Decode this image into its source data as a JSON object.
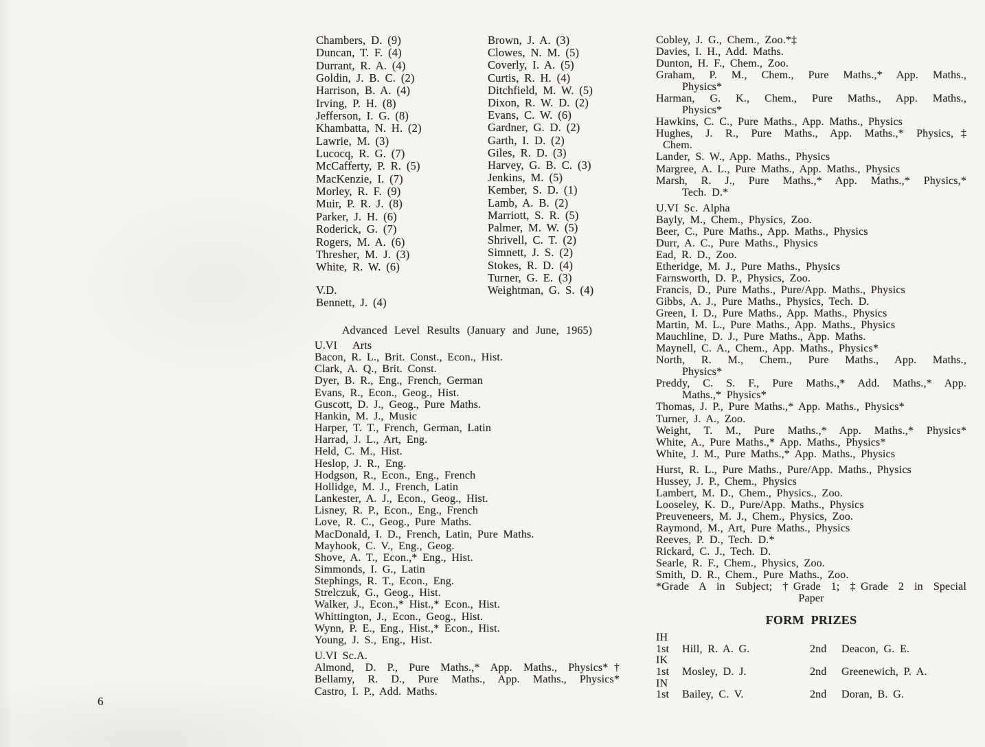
{
  "page_number": "6",
  "ordinary_level": {
    "column1": [
      "Chambers, D. (9)",
      "Duncan, T. F. (4)",
      "Durrant, R. A. (4)",
      "Goldin, J. B. C. (2)",
      "Harrison, B. A. (4)",
      "Irving, P. H. (8)",
      "Jefferson, I. G. (8)",
      "Khambatta, N. H. (2)",
      "Lawrie, M. (3)",
      "Lucocq, R. G. (7)",
      "McCafferty, P. R. (5)",
      "MacKenzie, I. (7)",
      "Morley, R. F. (9)",
      "Muir, P. R. J. (8)",
      "Parker, J. H. (6)",
      "Roderick, G. (7)",
      "Rogers, M. A. (6)",
      "Thresher, M. J. (3)",
      "White, R. W. (6)"
    ],
    "column2": [
      "Brown, J. A. (3)",
      "Clowes, N. M. (5)",
      "Coverly, I. A. (5)",
      "Curtis, R. H. (4)",
      "Ditchfield, M. W. (5)",
      "Dixon, R. W. D. (2)",
      "Evans, C. W. (6)",
      "Gardner, G. D. (2)",
      "Garth, I. D. (2)",
      "Giles, R. D. (3)",
      "Harvey, G. B. C. (3)",
      "Jenkins, M. (5)",
      "Kember, S. D. (1)",
      "Lamb, A. B. (2)",
      "Marriott, S. R. (5)",
      "Palmer, M. W. (5)",
      "Shrivell, C. T. (2)",
      "Simnett, J. S. (2)",
      "Stokes, R. D. (4)",
      "Turner, G. E. (3)",
      "Weightman, G. S. (4)"
    ],
    "vd_heading": "V.D.",
    "vd_entries": [
      "Bennett, J. (4)"
    ]
  },
  "advanced_level": {
    "title": "Advanced Level Results (January and June, 1965)",
    "left_lines": [
      {
        "t": "U.VI   Arts",
        "s": "head"
      },
      "Bacon, R. L., Brit. Const., Econ., Hist.",
      "Clark, A. Q., Brit. Const.",
      "Dyer, B. R., Eng., French, German",
      "Evans, R., Econ., Geog., Hist.",
      "Guscott, D. J., Geog., Pure Maths.",
      "Hankin, M. J., Music",
      "Harper, T. T., French, German, Latin",
      "Harrad, J. L., Art, Eng.",
      "Held, C. M., Hist.",
      "Heslop, J. R., Eng.",
      "Hodgson, R., Econ., Eng., French",
      "Hollidge, M. J., French, Latin",
      "Lankester, A. J., Econ., Geog., Hist.",
      "Lisney, R. P., Econ., Eng., French",
      "Love, R. C., Geog., Pure Maths.",
      "MacDonald, I. D., French, Latin, Pure Maths.",
      "Mayhook, C. V., Eng., Geog.",
      "Shove, A. T., Econ.,* Eng., Hist.",
      "Simmonds, I. G., Latin",
      "Stephings, R. T., Econ., Eng.",
      "Strelczuk, G., Geog., Hist.",
      "Walker, J., Econ.,* Hist.,* Econ., Hist.",
      "Whittington, J., Econ., Geog., Hist.",
      "Wynn, P. E., Eng., Hist.,* Econ., Hist.",
      "Young, J. S., Eng., Hist.",
      {
        "s": "gap"
      },
      {
        "t": "U.VI Sc.A.",
        "s": "head"
      },
      {
        "t": "Almond, D. P., Pure Maths.,* App. Maths., Physics*†",
        "s": "j"
      },
      {
        "t": "Bellamy, R. D., Pure Maths., App. Maths., Physics*",
        "s": "j"
      },
      "Castro, I. P., Add. Maths."
    ],
    "right_lines": [
      "Cobley, J. G., Chem., Zoo.*‡",
      "Davies, I. H., Add. Maths.",
      "Dunton, H. F., Chem., Zoo.",
      {
        "t": "Graham, P. M., Chem., Pure Maths.,* App. Maths.,",
        "s": "j"
      },
      {
        "t": "Physics*",
        "s": "cont"
      },
      {
        "t": "Harman, G. K., Chem., Pure Maths., App. Maths.,",
        "s": "j"
      },
      {
        "t": "Physics*",
        "s": "cont"
      },
      "Hawkins, C. C., Pure Maths., App. Maths., Physics",
      {
        "t": "Hughes, J. R., Pure Maths., App. Maths.,* Physics,‡",
        "s": "j"
      },
      {
        "t": "Chem.",
        "s": "cont-sm"
      },
      "Lander, S. W., App. Maths., Physics",
      "Margree, A. L., Pure Maths., App. Maths., Physics",
      {
        "t": "Marsh, R. J., Pure Maths.,* App. Maths.,* Physics,*",
        "s": "j"
      },
      {
        "t": "Tech. D.*",
        "s": "cont"
      },
      {
        "s": "gap"
      },
      {
        "t": "U.VI Sc. Alpha",
        "s": "head"
      },
      "Bayly, M., Chem., Physics, Zoo.",
      "Beer, C., Pure Maths., App. Maths., Physics",
      "Durr, A. C., Pure Maths., Physics",
      "Ead, R. D., Zoo.",
      "Etheridge, M. J., Pure Maths., Physics",
      "Farnsworth, D. P., Physics, Zoo.",
      "Francis, D., Pure Maths., Pure/App. Maths., Physics",
      "Gibbs, A. J., Pure Maths., Physics, Tech. D.",
      "Green, I. D., Pure Maths., App. Maths., Physics",
      "Martin, M. L., Pure Maths., App. Maths., Physics",
      "Mauchline, D. J., Pure Maths., App. Maths.",
      "Maynell, C. A., Chem., App. Maths., Physics*",
      {
        "t": "North, R. M., Chem., Pure Maths., App. Maths.,",
        "s": "j"
      },
      {
        "t": "Physics*",
        "s": "cont"
      },
      {
        "t": "Preddy, C. S. F., Pure Maths.,* Add. Maths.,* App.",
        "s": "j"
      },
      {
        "t": "Maths.,* Physics*",
        "s": "cont"
      },
      "Thomas, J. P., Pure Maths.,* App. Maths., Physics*",
      "Turner, J. A., Zoo.",
      {
        "t": "Weight, T. M., Pure Maths.,* App. Maths.,* Physics*",
        "s": "j"
      },
      "White, A., Pure Maths.,* App. Maths., Physics*",
      "White, J. M., Pure Maths.,* App. Maths., Physics",
      {
        "s": "gap"
      },
      "Hurst, R. L., Pure Maths., Pure/App. Maths., Physics",
      "Hussey, J. P., Chem., Physics",
      "Lambert, M. D., Chem., Physics., Zoo.",
      "Looseley, K. D., Pure/App. Maths., Physics",
      "Preuveneers, M. J., Chem., Physics, Zoo.",
      "Raymond, M., Art, Pure Maths., Physics",
      "Reeves, P. D., Tech. D.*",
      "Rickard, C. J., Tech. D.",
      "Searle, R. F., Chem., Physics, Zoo.",
      "Smith, D. R., Chem., Pure Maths., Zoo.",
      {
        "t": "*Grade A in Subject; †Grade 1; ‡Grade 2 in Special",
        "s": "j",
        "n": "footnote-line"
      },
      {
        "t": "Paper",
        "s": "center",
        "n": "footnote-line"
      }
    ]
  },
  "form_prizes": {
    "heading": "FORM PRIZES",
    "rows": [
      {
        "t": "IH",
        "s": "formlabel"
      },
      {
        "s": "prize",
        "p1": "1st",
        "n1": "Hill, R. A. G.",
        "p2": "2nd",
        "n2": "Deacon, G. E."
      },
      {
        "t": "IK",
        "s": "formlabel"
      },
      {
        "s": "prize",
        "p1": "1st",
        "n1": "Mosley, D. J.",
        "p2": "2nd",
        "n2": "Greenewich, P. A."
      },
      {
        "t": "IN",
        "s": "formlabel"
      },
      {
        "s": "prize",
        "p1": "1st",
        "n1": "Bailey, C. V.",
        "p2": "2nd",
        "n2": "Doran, B. G."
      }
    ]
  }
}
